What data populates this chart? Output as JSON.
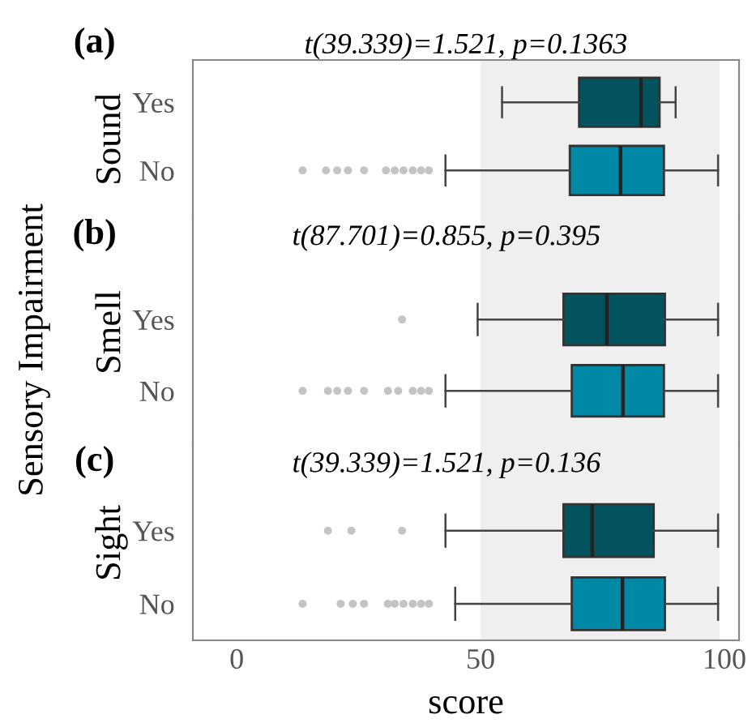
{
  "chart_data": [
    {
      "type": "box",
      "title": "t(39.339)=1.521, p=0.1363",
      "ylabel": "Sound",
      "annotations": [
        "(a)"
      ],
      "categories": [
        "Yes",
        "No"
      ],
      "colors": [
        "#03535e",
        "#0089a7"
      ],
      "orientation": "horizontal",
      "boxes": [
        {
          "low": 54.4,
          "q1": 70.2,
          "median": 82.9,
          "q3": 86.7,
          "high": 90
        },
        {
          "low": 42.8,
          "q1": 68.3,
          "median": 78.7,
          "q3": 87.6,
          "high": 98.7,
          "outliers": [
            13.5,
            18.3,
            20.6,
            22.8,
            26.1,
            30.6,
            32.4,
            34.2,
            36.1,
            37.8,
            39.4
          ]
        }
      ],
      "xlim": [
        -9,
        103
      ],
      "xticks": [
        0,
        50,
        100
      ],
      "bands": [
        {
          "axis": "x",
          "from": 50,
          "to": 99,
          "color": "#efefef"
        }
      ],
      "tick_labels": "y",
      "grid": false,
      "legend": false
    },
    {
      "type": "box",
      "title": "t(87.701)=0.855, p=0.395",
      "ylabel": "Smell",
      "annotations": [
        "(b)",
        "Sensory Impairment"
      ],
      "categories": [
        "Yes",
        "No"
      ],
      "colors": [
        "#03535e",
        "#0089a7"
      ],
      "orientation": "horizontal",
      "boxes": [
        {
          "low": 49.4,
          "q1": 67,
          "median": 75.9,
          "q3": 87.8,
          "high": 98.7,
          "outliers": [
            33.9
          ]
        },
        {
          "low": 42.8,
          "q1": 68.7,
          "median": 79.2,
          "q3": 87.6,
          "high": 98.7,
          "outliers": [
            13.5,
            18.7,
            20.6,
            22.8,
            26.1,
            31,
            33.1,
            36.1,
            37.8,
            39.4
          ]
        }
      ],
      "xlim": [
        -9,
        103
      ],
      "xticks": [
        0,
        50,
        100
      ],
      "bands": [
        {
          "axis": "x",
          "from": 50,
          "to": 99,
          "color": "#efefef"
        }
      ],
      "tick_labels": "y",
      "grid": false,
      "legend": false
    },
    {
      "type": "box",
      "title": "t(39.339)=1.521, p=0.136",
      "ylabel": "Sight",
      "xlabel": "score",
      "annotations": [
        "(c)"
      ],
      "categories": [
        "Yes",
        "No"
      ],
      "colors": [
        "#03535e",
        "#0089a7"
      ],
      "orientation": "horizontal",
      "boxes": [
        {
          "low": 42.8,
          "q1": 67,
          "median": 72.9,
          "q3": 85.5,
          "high": 98.7,
          "outliers": [
            18.7,
            23.5,
            33.9
          ]
        },
        {
          "low": 44.8,
          "q1": 68.7,
          "median": 79.1,
          "q3": 87.8,
          "high": 98.7,
          "outliers": [
            13.5,
            21.3,
            23.8,
            26.1,
            31,
            32.4,
            34.2,
            36.1,
            37.8,
            39.4
          ]
        }
      ],
      "xlim": [
        -9,
        103
      ],
      "xticks": [
        0,
        50,
        100
      ],
      "bands": [
        {
          "axis": "x",
          "from": 50,
          "to": 99,
          "color": "#efefef"
        }
      ],
      "grid": false,
      "legend": false
    }
  ]
}
